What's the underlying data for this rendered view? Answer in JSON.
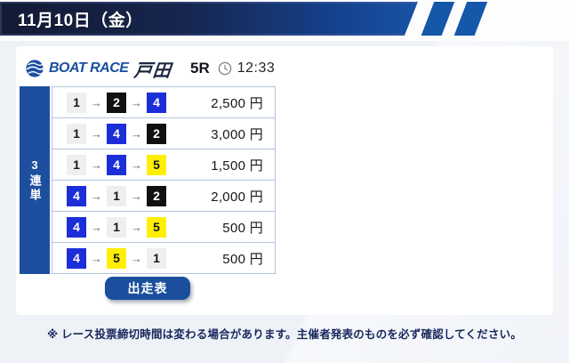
{
  "header": {
    "date_label": "11月10日（金）"
  },
  "race": {
    "brand": "BOAT RACE",
    "venue": "戸田",
    "race_no": "5R",
    "deadline_time": "12:33"
  },
  "bet": {
    "type_label": "3連単",
    "arrow": "→",
    "rows": [
      {
        "combo": [
          1,
          2,
          4
        ],
        "amount": "2,500 円"
      },
      {
        "combo": [
          1,
          4,
          2
        ],
        "amount": "3,000 円"
      },
      {
        "combo": [
          1,
          4,
          5
        ],
        "amount": "1,500 円"
      },
      {
        "combo": [
          4,
          1,
          2
        ],
        "amount": "2,000 円"
      },
      {
        "combo": [
          4,
          1,
          5
        ],
        "amount": "500 円"
      },
      {
        "combo": [
          4,
          5,
          1
        ],
        "amount": "500 円"
      }
    ],
    "badge_colors": {
      "1": {
        "bg": "#efefef",
        "fg": "#15181c"
      },
      "2": {
        "bg": "#101010",
        "fg": "#ffffff"
      },
      "3": {
        "bg": "#d62a22",
        "fg": "#ffffff"
      },
      "4": {
        "bg": "#1b2ed8",
        "fg": "#ffffff"
      },
      "5": {
        "bg": "#ffef00",
        "fg": "#15181c"
      },
      "6": {
        "bg": "#1f9e4b",
        "fg": "#ffffff"
      }
    }
  },
  "button": {
    "label": "出走表"
  },
  "footer": {
    "note": "※ レース投票締切時間は変わる場合があります。主催者発表のものを必ず確認してください。"
  },
  "colors": {
    "banner_dark": "#131a35",
    "banner_blue": "#1a52a5",
    "slash_blue": "#1557a8",
    "sidebar_blue": "#1d4f9e",
    "button_blue": "#1b4f9e",
    "brand_blue": "#1a4fa0",
    "row_border": "#b4c3da",
    "footer_navy": "#17275c"
  }
}
